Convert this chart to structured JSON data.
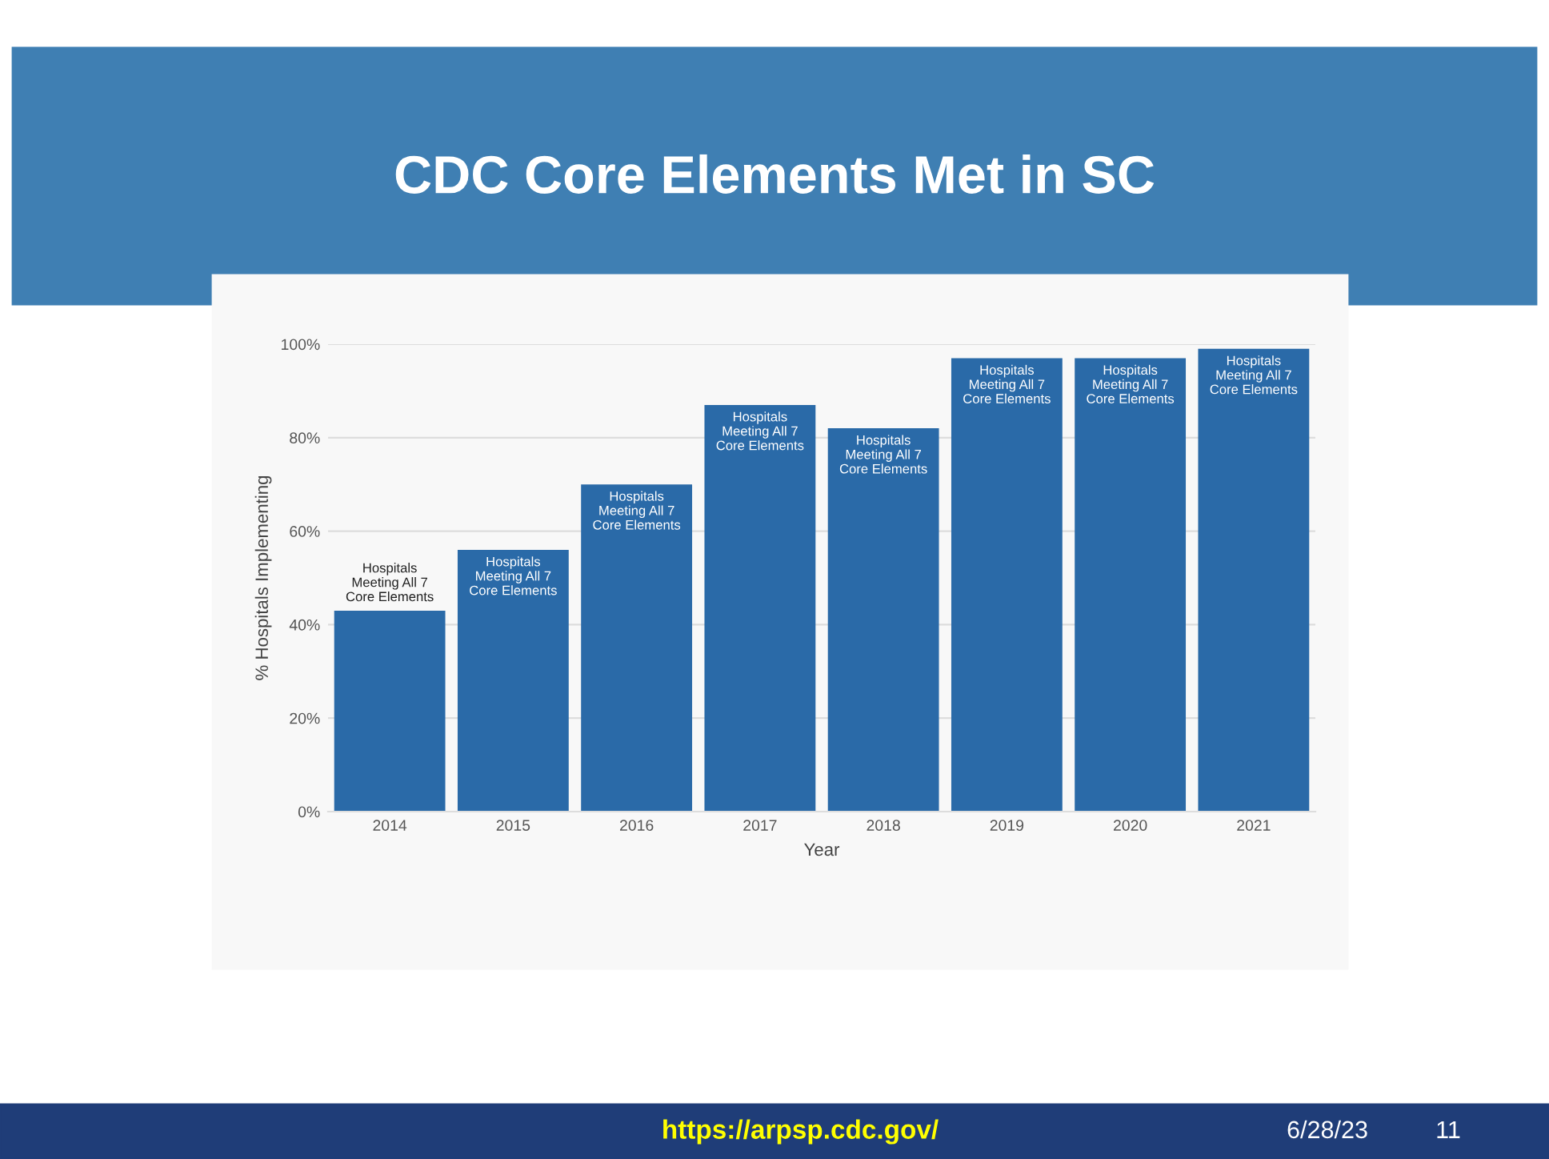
{
  "chart_data": {
    "type": "bar",
    "title": "CDC Core Elements Met in SC",
    "xlabel": "Year",
    "ylabel": "% Hospitals Implementing",
    "categories": [
      "2014",
      "2015",
      "2016",
      "2017",
      "2018",
      "2019",
      "2020",
      "2021"
    ],
    "values": [
      43,
      56,
      70,
      87,
      82,
      97,
      97,
      99
    ],
    "color": "#2a6aa8",
    "ylim": [
      0,
      100
    ],
    "yticks": [
      {
        "value": 0,
        "label": "0%"
      },
      {
        "value": 20,
        "label": "20%"
      },
      {
        "value": 40,
        "label": "40%"
      },
      {
        "value": 60,
        "label": "60%"
      },
      {
        "value": 80,
        "label": "80%"
      },
      {
        "value": 100,
        "label": "100%"
      }
    ],
    "grid": "y",
    "annotations": [
      {
        "text": "Hospitals\nMeeting All 7\nCore Elements",
        "x": "2014",
        "y": 43
      },
      {
        "text": "Hospitals\nMeeting All 7\nCore Elements",
        "x": "2015",
        "y": 56
      },
      {
        "text": "Hospitals\nMeeting All 7\nCore Elements",
        "x": "2016",
        "y": 70
      },
      {
        "text": "Hospitals\nMeeting All 7\nCore Elements",
        "x": "2017",
        "y": 87
      },
      {
        "text": "Hospitals\nMeeting All 7\nCore Elements",
        "x": "2018",
        "y": 82
      },
      {
        "text": "Hospitals\nMeeting All 7\nCore Elements",
        "x": "2019",
        "y": 97
      },
      {
        "text": "Hospitals\nMeeting All 7\nCore Elements",
        "x": "2020",
        "y": 97
      },
      {
        "text": "Hospitals\nMeeting All 7\nCore Elements",
        "x": "2021",
        "y": 99
      },
      "https://arpsp.cdc.gov/",
      "6/28/23",
      "11"
    ]
  }
}
